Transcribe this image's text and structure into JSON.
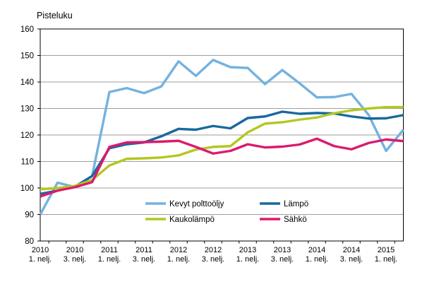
{
  "title": "Pisteluku",
  "chart_data": {
    "type": "line",
    "title": "Pisteluku",
    "ylim": [
      80,
      160
    ],
    "ytick_step": 10,
    "grid": "horizontal",
    "legend_position": "inside-bottom",
    "x_tick_labels": [
      {
        "line1": "2010",
        "line2": "1. nelj."
      },
      {
        "line1": "2010",
        "line2": "3. nelj."
      },
      {
        "line1": "2011",
        "line2": "1. nelj."
      },
      {
        "line1": "2011",
        "line2": "3. nelj."
      },
      {
        "line1": "2012",
        "line2": "1. nelj."
      },
      {
        "line1": "2012",
        "line2": "3. nelj."
      },
      {
        "line1": "2013",
        "line2": "1. nelj."
      },
      {
        "line1": "2013",
        "line2": "3. nelj."
      },
      {
        "line1": "2014",
        "line2": "1. nelj."
      },
      {
        "line1": "2014",
        "line2": "3. nelj."
      },
      {
        "line1": "2015",
        "line2": "1. nelj."
      }
    ],
    "x_label_every_n_points": 2,
    "quarters": [
      "2010Q1",
      "2010Q2",
      "2010Q3",
      "2010Q4",
      "2011Q1",
      "2011Q2",
      "2011Q3",
      "2011Q4",
      "2012Q1",
      "2012Q2",
      "2012Q3",
      "2012Q4",
      "2013Q1",
      "2013Q2",
      "2013Q3",
      "2013Q4",
      "2014Q1",
      "2014Q2",
      "2014Q3",
      "2014Q4",
      "2015Q1",
      "2015Q2"
    ],
    "series": [
      {
        "name": "Kevyt polttoöljy",
        "color": "#74B2DF",
        "values": [
          90,
          102,
          100.4,
          104.5,
          136.2,
          137.7,
          135.8,
          138.3,
          147.8,
          142.3,
          148.3,
          145.6,
          145.3,
          139.2,
          144.5,
          139.5,
          134.2,
          134.3,
          135.5,
          127.5,
          114,
          122
        ]
      },
      {
        "name": "Lämpö",
        "color": "#17699E",
        "values": [
          97.8,
          99,
          100.5,
          104.5,
          115,
          116.5,
          117.2,
          119.5,
          122.3,
          122,
          123.4,
          122.5,
          126.4,
          127,
          128.8,
          128,
          128.3,
          128.1,
          127,
          126.2,
          126.3,
          127.5
        ]
      },
      {
        "name": "Kaukolämpö",
        "color": "#B3C720",
        "values": [
          99.5,
          100,
          100.8,
          103,
          108.5,
          111,
          111.2,
          111.5,
          112.3,
          114.5,
          115.5,
          115.8,
          121,
          124.3,
          124.8,
          125.8,
          126.6,
          128.2,
          129.3,
          130,
          130.5,
          130.5
        ]
      },
      {
        "name": "Sähkö",
        "color": "#DB1A6E",
        "values": [
          96.8,
          99,
          100.3,
          102.2,
          115.5,
          117.2,
          117.3,
          117.5,
          117.8,
          115.5,
          113,
          114,
          116.5,
          115.3,
          115.6,
          116.4,
          118.6,
          115.8,
          114.6,
          117,
          118.3,
          117.7
        ]
      }
    ],
    "legend": [
      "Kevyt polttoöljy",
      "Lämpö",
      "Kaukolämpö",
      "Sähkö"
    ],
    "colors": {
      "gridline": "#9E9E9E",
      "frame": "#000000",
      "text": "#000000"
    }
  }
}
